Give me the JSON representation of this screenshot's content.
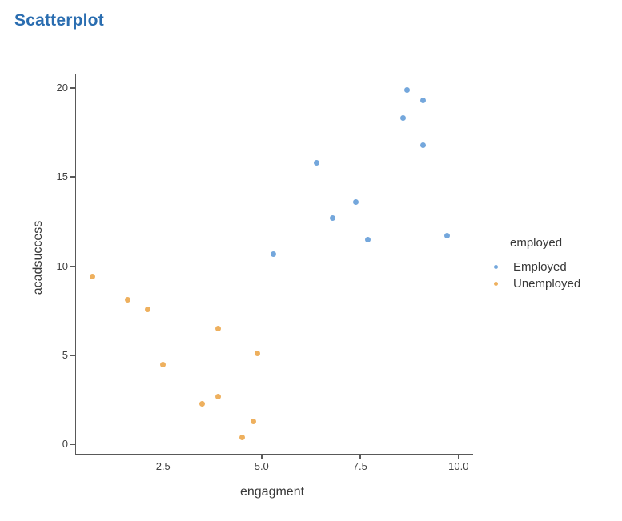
{
  "title": "Scatterplot",
  "colors": {
    "title": "#2A6DB0",
    "axis_line": "#595959",
    "tick_text": "#404040",
    "label_text": "#383838",
    "employed_point": "#74A7DC",
    "unemployed_point": "#EEB05E"
  },
  "chart_data": {
    "type": "scatter",
    "title": "Scatterplot",
    "xlabel": "engagment",
    "ylabel": "acadsuccess",
    "xlim": [
      0.29,
      10.37
    ],
    "ylim": [
      -0.52,
      20.8
    ],
    "grid": false,
    "x_ticks": {
      "values": [
        2.5,
        5.0,
        7.5,
        10.0
      ],
      "labels": [
        "2.5",
        "5.0",
        "7.5",
        "10.0"
      ]
    },
    "y_ticks": {
      "values": [
        0,
        5,
        10,
        15,
        20
      ],
      "labels": [
        "0",
        "5",
        "10",
        "15",
        "20"
      ]
    },
    "legend": {
      "title": "employed",
      "position": "right",
      "entries": [
        "Employed",
        "Unemployed"
      ]
    },
    "series": [
      {
        "name": "Employed",
        "color": "#74A7DC",
        "points": [
          [
            5.3,
            10.7
          ],
          [
            6.4,
            15.8
          ],
          [
            6.8,
            12.7
          ],
          [
            7.4,
            13.6
          ],
          [
            7.7,
            11.5
          ],
          [
            8.6,
            18.3
          ],
          [
            8.7,
            19.9
          ],
          [
            9.1,
            19.3
          ],
          [
            9.1,
            16.8
          ],
          [
            9.7,
            11.7
          ]
        ]
      },
      {
        "name": "Unemployed",
        "color": "#EEB05E",
        "points": [
          [
            0.7,
            9.4
          ],
          [
            1.6,
            8.1
          ],
          [
            2.1,
            7.6
          ],
          [
            2.5,
            4.5
          ],
          [
            3.5,
            2.3
          ],
          [
            3.9,
            6.5
          ],
          [
            3.9,
            2.7
          ],
          [
            4.5,
            0.4
          ],
          [
            4.8,
            1.3
          ],
          [
            4.9,
            5.1
          ]
        ]
      }
    ]
  }
}
